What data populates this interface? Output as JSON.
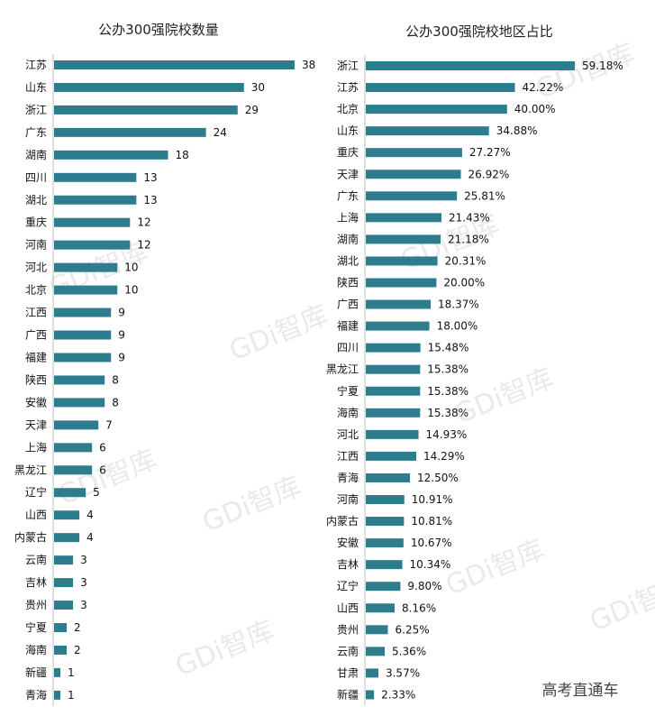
{
  "colors": {
    "bar": "#2e7d8f",
    "axis": "#bfbfbf"
  },
  "watermark": "GDi智库",
  "footer": "高考直通车",
  "chart_data": [
    {
      "type": "bar",
      "orientation": "horizontal",
      "title": "公办300强院校数量",
      "categories": [
        "江苏",
        "山东",
        "浙江",
        "广东",
        "湖南",
        "四川",
        "湖北",
        "重庆",
        "河南",
        "河北",
        "北京",
        "江西",
        "广西",
        "福建",
        "陕西",
        "安徽",
        "天津",
        "上海",
        "黑龙江",
        "辽宁",
        "山西",
        "内蒙古",
        "云南",
        "吉林",
        "贵州",
        "宁夏",
        "海南",
        "新疆",
        "青海"
      ],
      "values": [
        38,
        30,
        29,
        24,
        18,
        13,
        13,
        12,
        12,
        10,
        10,
        9,
        9,
        9,
        8,
        8,
        7,
        6,
        6,
        5,
        4,
        4,
        3,
        3,
        3,
        2,
        2,
        1,
        1
      ],
      "labels": [
        "38",
        "30",
        "29",
        "24",
        "18",
        "13",
        "13",
        "12",
        "12",
        "10",
        "10",
        "9",
        "9",
        "9",
        "8",
        "8",
        "7",
        "6",
        "6",
        "5",
        "4",
        "4",
        "3",
        "3",
        "3",
        "2",
        "2",
        "1",
        "1"
      ],
      "xlim": [
        0,
        38
      ]
    },
    {
      "type": "bar",
      "orientation": "horizontal",
      "title": "公办300强院校地区占比",
      "categories": [
        "浙江",
        "江苏",
        "北京",
        "山东",
        "重庆",
        "天津",
        "广东",
        "上海",
        "湖南",
        "湖北",
        "陕西",
        "广西",
        "福建",
        "四川",
        "黑龙江",
        "宁夏",
        "海南",
        "河北",
        "江西",
        "青海",
        "河南",
        "内蒙古",
        "安徽",
        "吉林",
        "辽宁",
        "山西",
        "贵州",
        "云南",
        "甘肃",
        "新疆"
      ],
      "values": [
        59.18,
        42.22,
        40.0,
        34.88,
        27.27,
        26.92,
        25.81,
        21.43,
        21.18,
        20.31,
        20.0,
        18.37,
        18.0,
        15.48,
        15.38,
        15.38,
        15.38,
        14.93,
        14.29,
        12.5,
        10.91,
        10.81,
        10.67,
        10.34,
        9.8,
        8.16,
        6.25,
        5.36,
        3.57,
        2.33
      ],
      "labels": [
        "59.18%",
        "42.22%",
        "40.00%",
        "34.88%",
        "27.27%",
        "26.92%",
        "25.81%",
        "21.43%",
        "21.18%",
        "20.31%",
        "20.00%",
        "18.37%",
        "18.00%",
        "15.48%",
        "15.38%",
        "15.38%",
        "15.38%",
        "14.93%",
        "14.29%",
        "12.50%",
        "10.91%",
        "10.81%",
        "10.67%",
        "10.34%",
        "9.80%",
        "8.16%",
        "6.25%",
        "5.36%",
        "3.57%",
        "2.33%"
      ],
      "xlim": [
        0,
        59.18
      ]
    }
  ]
}
